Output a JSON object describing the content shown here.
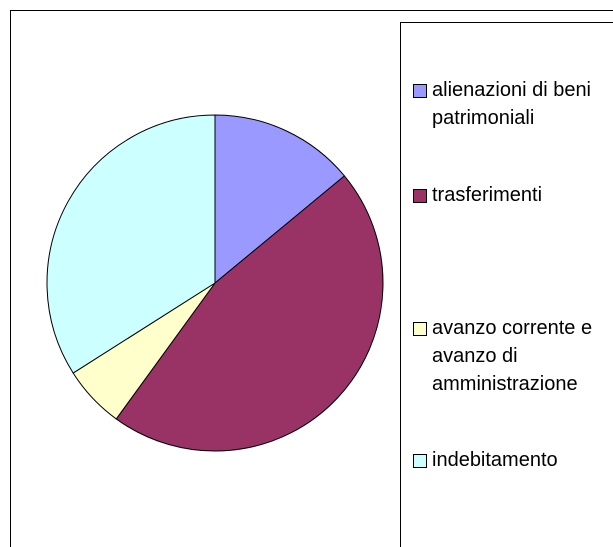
{
  "chart_data": {
    "type": "pie",
    "categories": [
      "alienazioni di beni patrimoniali",
      "trasferimenti",
      "avanzo corrente e avanzo di amministrazione",
      "indebitamento"
    ],
    "values": [
      14,
      46,
      6,
      34
    ],
    "colors": [
      "#9999ff",
      "#993366",
      "#ffffcc",
      "#ccffff"
    ],
    "legend": "right"
  }
}
